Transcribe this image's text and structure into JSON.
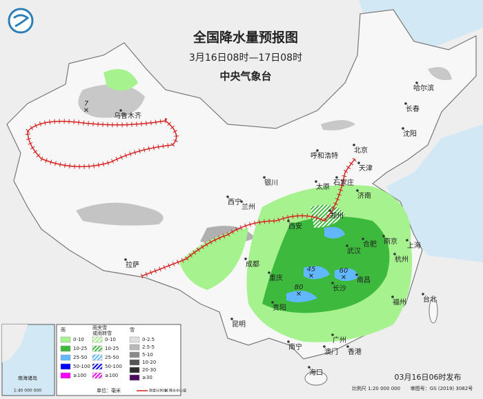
{
  "header": {
    "title": "全国降水量预报图",
    "subtitle": "3月16日08时—17日08时",
    "issuer": "中央气象台"
  },
  "cities": [
    "哈尔滨",
    "长春",
    "沈阳",
    "乌鲁木齐",
    "呼和浩特",
    "北京",
    "天津",
    "石家庄",
    "太原",
    "银川",
    "济南",
    "西宁",
    "兰州",
    "郑州",
    "西安",
    "合肥",
    "南京",
    "上海",
    "武汉",
    "杭州",
    "成都",
    "拉萨",
    "重庆",
    "南昌",
    "长沙",
    "福州",
    "台北",
    "贵阳",
    "昆明",
    "南宁",
    "广州",
    "澳门",
    "香港",
    "海口"
  ],
  "centers": [
    7,
    45,
    60,
    80
  ],
  "legend": {
    "rain": {
      "title": "雨",
      "levels": [
        {
          "label": "0-10",
          "color": "#a6f28f"
        },
        {
          "label": "10-25",
          "color": "#3dba3d"
        },
        {
          "label": "25-50",
          "color": "#61b8ff"
        },
        {
          "label": "50-100",
          "color": "#0000fe"
        },
        {
          "label": "≥100",
          "color": "#fa00fa"
        }
      ]
    },
    "sleet": {
      "title": "雨夹雪\n或雨转雪",
      "levels": [
        {
          "label": "0-10",
          "color": "#a6f28f"
        },
        {
          "label": "10-25",
          "color": "#3dba3d"
        },
        {
          "label": "25-50",
          "color": "#61b8ff"
        },
        {
          "label": "50-100",
          "color": "#0000fe"
        },
        {
          "label": "≥100",
          "color": "#fa00fa"
        }
      ]
    },
    "snow": {
      "title": "雪",
      "levels": [
        {
          "label": "0-2.5",
          "color": "#dedede"
        },
        {
          "label": "2.5-5",
          "color": "#b8b8b8"
        },
        {
          "label": "5-10",
          "color": "#8a8a8a"
        },
        {
          "label": "10-20",
          "color": "#555555"
        },
        {
          "label": "20-30",
          "color": "#2c2c2c"
        },
        {
          "label": "≥30",
          "color": "#4b0a5e"
        }
      ]
    },
    "unit": "单位：毫米",
    "boundary": "雨雪分界线",
    "center": "降水中心值"
  },
  "inset": {
    "title": "南海诸岛",
    "scale": "1:40 000 000"
  },
  "footer": {
    "issued": "03月16日06时发布",
    "scale": "比例尺 1:20 000 000",
    "approval": "审图号：GS (2019) 3082号"
  }
}
